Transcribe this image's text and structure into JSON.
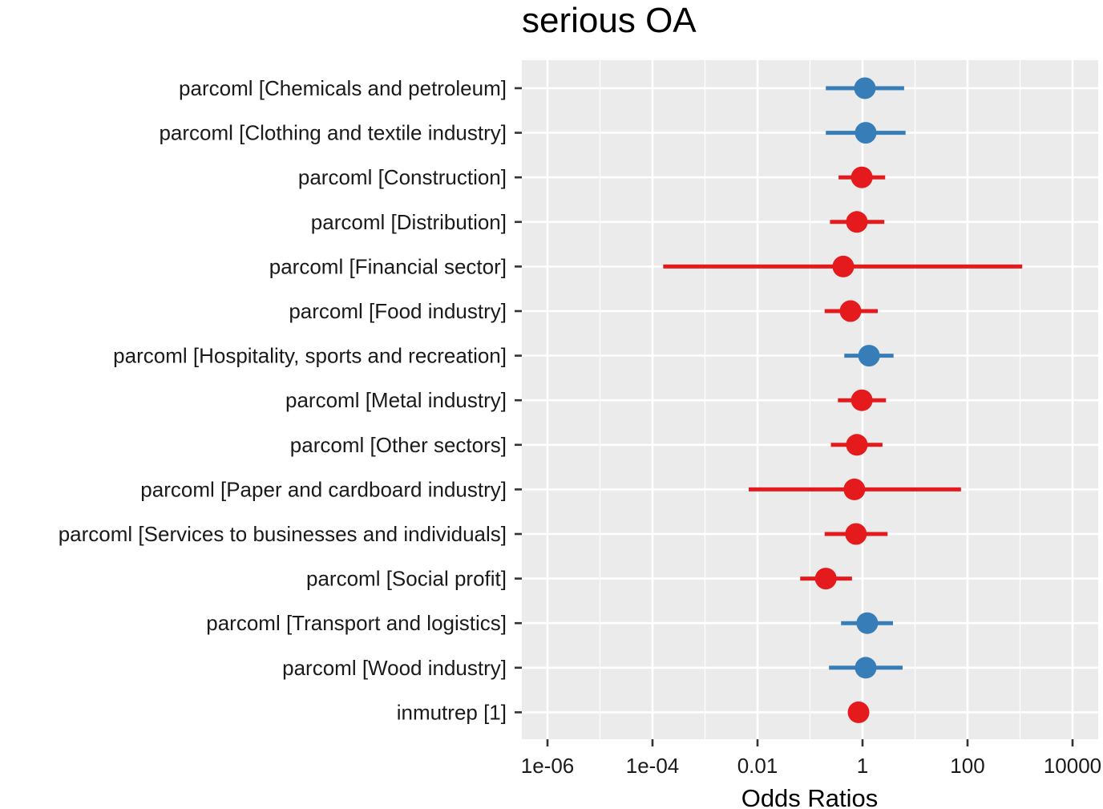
{
  "chart_data": {
    "type": "forest",
    "title": "serious OA",
    "xlabel": "Odds Ratios",
    "ylabel": "",
    "x_scale": "log10",
    "xlim": [
      5e-07,
      50000
    ],
    "x_ticks": [
      1e-06,
      0.0001,
      0.01,
      1,
      100,
      10000
    ],
    "x_tick_labels": [
      "1e-06",
      "1e-04",
      "0.01",
      "1",
      "100",
      "10000"
    ],
    "grid": true,
    "legend": "none",
    "colors": {
      "positive": "#377EB8",
      "negative": "#E41A1C",
      "panel": "#EBEBEB",
      "grid": "#FFFFFF"
    },
    "series": [
      {
        "label": "parcoml [Chemicals and petroleum]",
        "estimate": 1.11,
        "ci_low": 0.2,
        "ci_high": 6.2,
        "direction": "positive"
      },
      {
        "label": "parcoml [Clothing and textile industry]",
        "estimate": 1.15,
        "ci_low": 0.2,
        "ci_high": 6.6,
        "direction": "positive"
      },
      {
        "label": "parcoml [Construction]",
        "estimate": 0.97,
        "ci_low": 0.35,
        "ci_high": 2.7,
        "direction": "negative"
      },
      {
        "label": "parcoml [Distribution]",
        "estimate": 0.78,
        "ci_low": 0.24,
        "ci_high": 2.6,
        "direction": "negative"
      },
      {
        "label": "parcoml [Financial sector]",
        "estimate": 0.43,
        "ci_low": 0.00016,
        "ci_high": 1100,
        "direction": "negative"
      },
      {
        "label": "parcoml [Food industry]",
        "estimate": 0.59,
        "ci_low": 0.19,
        "ci_high": 1.95,
        "direction": "negative"
      },
      {
        "label": "parcoml [Hospitality, sports and recreation]",
        "estimate": 1.33,
        "ci_low": 0.45,
        "ci_high": 3.9,
        "direction": "positive"
      },
      {
        "label": "parcoml [Metal industry]",
        "estimate": 0.97,
        "ci_low": 0.34,
        "ci_high": 2.8,
        "direction": "negative"
      },
      {
        "label": "parcoml [Other sectors]",
        "estimate": 0.78,
        "ci_low": 0.25,
        "ci_high": 2.4,
        "direction": "negative"
      },
      {
        "label": "parcoml [Paper and cardboard industry]",
        "estimate": 0.7,
        "ci_low": 0.0068,
        "ci_high": 75,
        "direction": "negative"
      },
      {
        "label": "parcoml [Services to businesses and individuals]",
        "estimate": 0.75,
        "ci_low": 0.19,
        "ci_high": 3.0,
        "direction": "negative"
      },
      {
        "label": "parcoml [Social profit]",
        "estimate": 0.2,
        "ci_low": 0.065,
        "ci_high": 0.63,
        "direction": "negative"
      },
      {
        "label": "parcoml [Transport and logistics]",
        "estimate": 1.23,
        "ci_low": 0.39,
        "ci_high": 3.8,
        "direction": "positive"
      },
      {
        "label": "parcoml [Wood industry]",
        "estimate": 1.15,
        "ci_low": 0.23,
        "ci_high": 5.8,
        "direction": "positive"
      },
      {
        "label": "inmutrep [1]",
        "estimate": 0.84,
        "ci_low": 0.84,
        "ci_high": 0.84,
        "direction": "negative"
      }
    ]
  }
}
